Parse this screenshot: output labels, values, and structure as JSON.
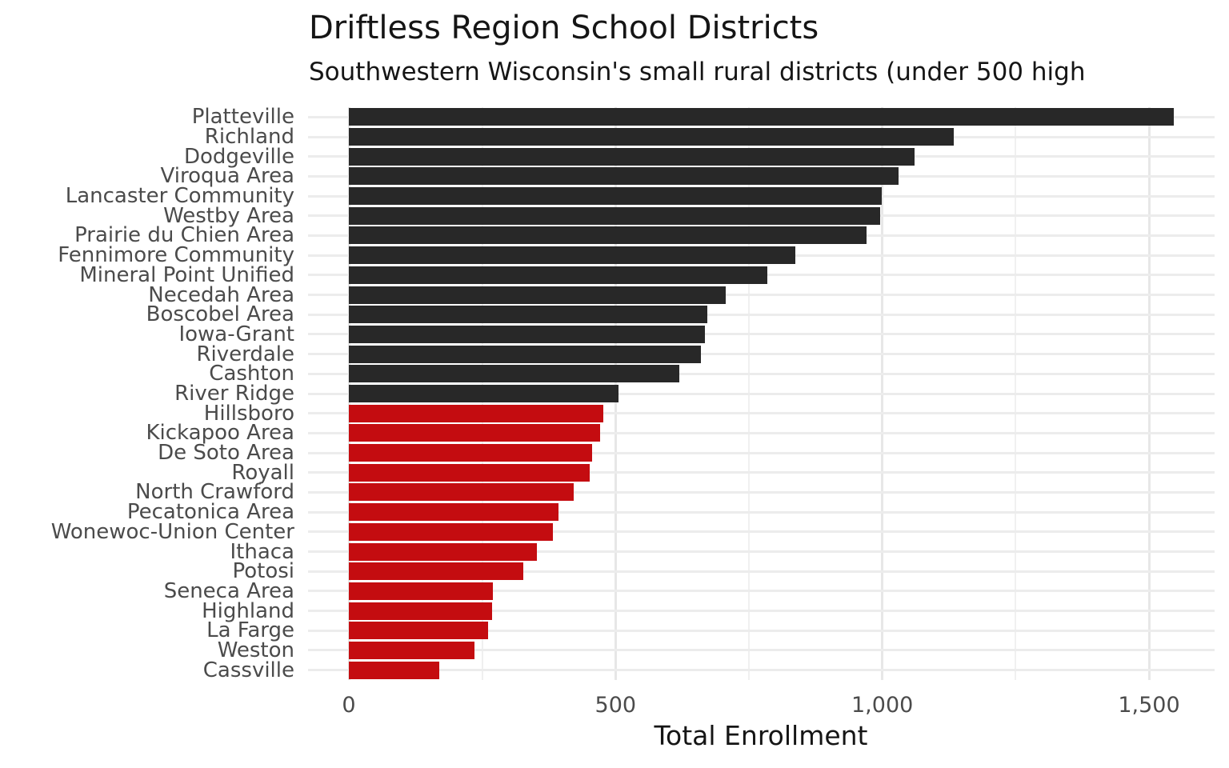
{
  "chart_data": {
    "type": "bar",
    "orientation": "horizontal",
    "title": "Driftless Region School Districts",
    "subtitle": "Southwestern Wisconsin's small rural districts (under 500 high",
    "xlabel": "Total Enrollment",
    "ylabel": "",
    "xlim": [
      0,
      1625
    ],
    "grid": true,
    "legend": "none",
    "x_major_ticks": [
      {
        "value": 0,
        "label": "0"
      },
      {
        "value": 500,
        "label": "500"
      },
      {
        "value": 1000,
        "label": "1,000"
      },
      {
        "value": 1500,
        "label": "1,500"
      }
    ],
    "x_minor_ticks": [
      250,
      750,
      1250
    ],
    "categories": [
      "Platteville",
      "Richland",
      "Dodgeville",
      "Viroqua Area",
      "Lancaster Community",
      "Westby Area",
      "Prairie du Chien Area",
      "Fennimore Community",
      "Mineral Point Unified",
      "Necedah Area",
      "Boscobel Area",
      "Iowa-Grant",
      "Riverdale",
      "Cashton",
      "River Ridge",
      "Hillsboro",
      "Kickapoo Area",
      "De Soto Area",
      "Royall",
      "North Crawford",
      "Pecatonica Area",
      "Wonewoc-Union Center",
      "Ithaca",
      "Potosi",
      "Seneca Area",
      "Highland",
      "La Farge",
      "Weston",
      "Cassville"
    ],
    "values": [
      1546,
      1134,
      1061,
      1030,
      999,
      996,
      971,
      837,
      784,
      707,
      672,
      668,
      660,
      619,
      505,
      477,
      471,
      456,
      452,
      422,
      393,
      383,
      353,
      327,
      270,
      268,
      261,
      235,
      170
    ],
    "bar_color_groups": [
      "dark",
      "dark",
      "dark",
      "dark",
      "dark",
      "dark",
      "dark",
      "dark",
      "dark",
      "dark",
      "dark",
      "dark",
      "dark",
      "dark",
      "dark",
      "red",
      "red",
      "red",
      "red",
      "red",
      "red",
      "red",
      "red",
      "red",
      "red",
      "red",
      "red",
      "red",
      "red"
    ],
    "colors": {
      "dark": "#282828",
      "red": "#C40C10",
      "grid_major": "#E7E7E7",
      "grid_minor": "#F0F0F0",
      "axis_text": "#4B4B4B",
      "title_text": "#151515"
    }
  }
}
